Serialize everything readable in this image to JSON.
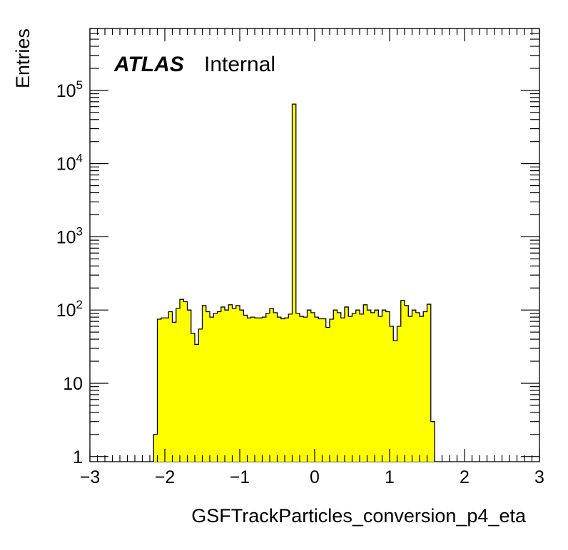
{
  "chart_data": {
    "type": "histogram",
    "xlabel": "GSFTrackParticles_conversion_p4_eta",
    "ylabel": "Entries",
    "xlim": [
      -3,
      3
    ],
    "ylim": [
      0.85,
      700000
    ],
    "yscale": "log",
    "bin_width": 0.05,
    "bin_start": -2.15,
    "fill_color": "#ffff00",
    "line_color": "#000000",
    "label": {
      "atlas": "ATLAS",
      "status": "Internal"
    },
    "x_ticks": [
      {
        "value": -3,
        "label": "−3"
      },
      {
        "value": -2,
        "label": "−2"
      },
      {
        "value": -1,
        "label": "−1"
      },
      {
        "value": 0,
        "label": "0"
      },
      {
        "value": 1,
        "label": "1"
      },
      {
        "value": 2,
        "label": "2"
      },
      {
        "value": 3,
        "label": "3"
      }
    ],
    "y_ticks": [
      {
        "value": 1,
        "base": "1",
        "exp": ""
      },
      {
        "value": 10,
        "base": "10",
        "exp": ""
      },
      {
        "value": 100,
        "base": "10",
        "exp": "2"
      },
      {
        "value": 1000,
        "base": "10",
        "exp": "3"
      },
      {
        "value": 10000,
        "base": "10",
        "exp": "4"
      },
      {
        "value": 100000,
        "base": "10",
        "exp": "5"
      }
    ],
    "values": [
      2,
      75,
      78,
      78,
      95,
      68,
      105,
      140,
      130,
      100,
      48,
      34,
      55,
      115,
      95,
      80,
      90,
      95,
      110,
      100,
      118,
      105,
      115,
      100,
      85,
      78,
      80,
      78,
      78,
      80,
      90,
      105,
      92,
      80,
      76,
      78,
      88,
      65000,
      90,
      82,
      80,
      100,
      92,
      80,
      76,
      76,
      58,
      75,
      100,
      92,
      78,
      110,
      82,
      90,
      100,
      88,
      118,
      100,
      92,
      100,
      82,
      100,
      95,
      60,
      38,
      60,
      135,
      115,
      82,
      100,
      92,
      82,
      95,
      120,
      3
    ]
  }
}
